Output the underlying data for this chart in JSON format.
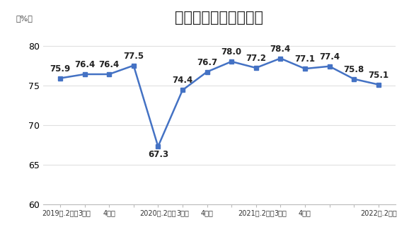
{
  "title": "分季度工业产能利用率",
  "ylabel": "（%）",
  "values": [
    75.9,
    76.4,
    76.4,
    77.5,
    67.3,
    74.4,
    76.7,
    78.0,
    77.2,
    78.4,
    77.1,
    77.4,
    75.8,
    75.1
  ],
  "x_positions": [
    0,
    1,
    2,
    3,
    5,
    6,
    7,
    8,
    10,
    11,
    12,
    13,
    15,
    16
  ],
  "xtick_positions": [
    0,
    1,
    2,
    3,
    5,
    6,
    7,
    8,
    10,
    11,
    12,
    13,
    15,
    16
  ],
  "tick_label_positions": [
    0,
    1,
    2,
    4,
    5,
    6,
    8,
    9,
    10,
    12
  ],
  "tick_labels": [
    "2019年.2季度",
    "3季度",
    "4季度",
    "2020年.2季度",
    "3季度",
    "4季度",
    "2021年.2季度",
    "3季度",
    "4季度",
    "2022年.2季度"
  ],
  "line_color": "#4472C4",
  "marker_color": "#4472C4",
  "background_color": "#ffffff",
  "ylim": [
    60,
    82
  ],
  "yticks": [
    60,
    65,
    70,
    75,
    80
  ],
  "title_fontsize": 15,
  "annotation_fontsize": 8.5
}
